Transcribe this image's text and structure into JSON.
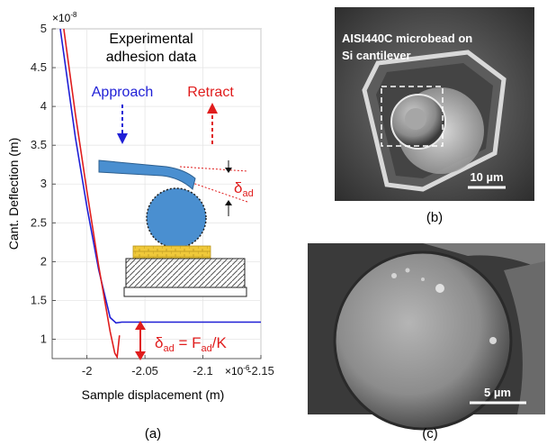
{
  "chart_data": {
    "type": "line",
    "title": "Experimental adhesion data",
    "title_lines": [
      "Experimental",
      "adhesion data"
    ],
    "xlabel": "Sample displacement (m)",
    "ylabel": "Cant. Deflection (m)",
    "x_exponent": "×10",
    "x_exponent_power": "-6",
    "y_exponent": "×10",
    "y_exponent_power": "-8",
    "xlim": [
      -1.97,
      -2.15
    ],
    "ylim": [
      0.75,
      5.0
    ],
    "x_ticks": [
      -2,
      -2.05,
      -2.1,
      -2.15
    ],
    "x_tick_labels": [
      "-2",
      "-2.05",
      "-2.1",
      "-2.15"
    ],
    "y_ticks": [
      1,
      1.5,
      2,
      2.5,
      3,
      3.5,
      4,
      4.5,
      5
    ],
    "y_tick_labels": [
      "1",
      "1.5",
      "2",
      "2.5",
      "3",
      "3.5",
      "4",
      "4.5",
      "5"
    ],
    "grid": true,
    "series": [
      {
        "name": "Approach",
        "color": "#1f1fd6",
        "x": [
          -1.977,
          -1.99,
          -2.0,
          -2.01,
          -2.02,
          -2.025,
          -2.03,
          -2.06,
          -2.1,
          -2.15
        ],
        "y": [
          5.0,
          3.6,
          2.7,
          1.9,
          1.28,
          1.21,
          1.22,
          1.22,
          1.22,
          1.22
        ]
      },
      {
        "name": "Retract",
        "color": "#e01d1d",
        "x": [
          -1.98,
          -1.99,
          -2.0,
          -2.01,
          -2.02,
          -2.024,
          -2.026,
          -2.028
        ],
        "y": [
          5.0,
          3.9,
          2.9,
          1.95,
          1.1,
          0.82,
          0.77,
          1.05
        ]
      }
    ],
    "annotations": {
      "approach_label": "Approach",
      "retract_label": "Retract",
      "delta_ad": "δ",
      "delta_ad_sub": "ad",
      "equation_lhs": "δ",
      "equation_sub1": "ad",
      "equation_mid": " = F",
      "equation_sub2": "ad",
      "equation_rhs": "/K"
    }
  },
  "captions": {
    "a": "(a)",
    "b": "(b)",
    "c": "(c)"
  },
  "sem_b": {
    "line1": "AISI440C microbead on",
    "line2": "Si cantilever",
    "scale": "10 µm"
  },
  "sem_c": {
    "scale": "5 µm"
  },
  "colors": {
    "approach": "#1f1fd6",
    "retract": "#e01d1d",
    "cantilever": "#4a8fd0",
    "sphere": "#4a8fd0",
    "substrate": "#f0c93a"
  }
}
